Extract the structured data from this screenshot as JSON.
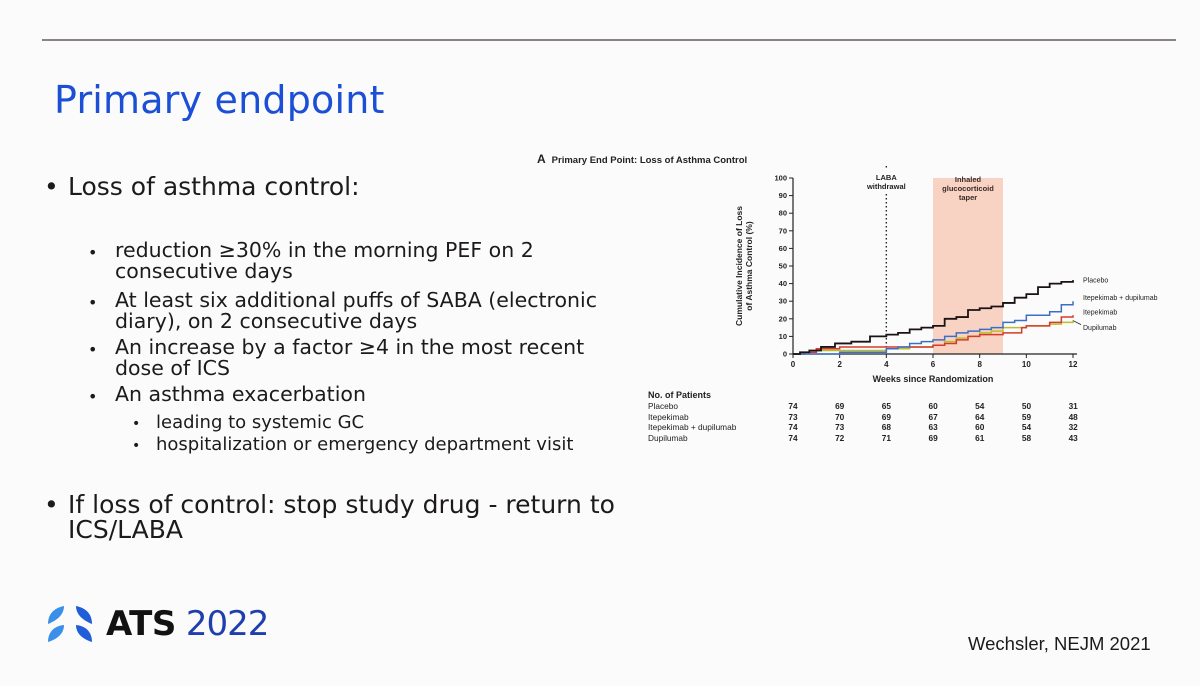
{
  "slide": {
    "title": "Primary endpoint",
    "bullets": {
      "main": "Loss of asthma control:",
      "sub": [
        {
          "line1": "reduction ≥30% in the morning PEF on 2",
          "line2": "consecutive days"
        },
        {
          "line1": "At least six additional puffs of SABA (electronic",
          "line2": "diary), on 2 consecutive days"
        },
        {
          "line1": "An increase by a factor ≥4 in the most recent",
          "line2": "dose of ICS"
        },
        {
          "line1": "An asthma exacerbation"
        }
      ],
      "subsub": [
        "leading to systemic GC",
        "hospitalization or emergency department visit"
      ],
      "second_main": {
        "line1": "If loss of control: stop study drug - return to",
        "line2": "ICS/LABA"
      },
      "bullet_glyph": "•"
    },
    "logo": {
      "icon": "ats-lungs-icon",
      "org": "ATS",
      "year": "2022"
    },
    "citation": "Wechsler, NEJM 2021",
    "colors": {
      "title": "#1a4fd6",
      "logo_year": "#1f3fae",
      "rule": "#8a8486"
    }
  },
  "chart_data": {
    "type": "line",
    "panel_letter": "A",
    "title": "Primary End Point: Loss of Asthma Control",
    "xlabel": "Weeks since Randomization",
    "ylabel_line1": "Cumulative Incidence of Loss",
    "ylabel_line2": "of Asthma Control (%)",
    "xlim": [
      0,
      12
    ],
    "ylim": [
      0,
      100
    ],
    "xticks": [
      "0",
      "2",
      "4",
      "6",
      "8",
      "10",
      "12"
    ],
    "yticks": [
      "0",
      "10",
      "20",
      "30",
      "40",
      "50",
      "60",
      "70",
      "80",
      "90",
      "100"
    ],
    "grid": false,
    "step": true,
    "annotations": [
      {
        "label_line1": "LABA",
        "label_line2": "withdrawal",
        "type": "vertical-dotted-line",
        "x": 4
      },
      {
        "label_line1": "Inhaled",
        "label_line2": "glucocorticoid",
        "label_line3": "taper",
        "type": "shaded-region",
        "x_range": [
          6,
          9
        ],
        "color": "#f8d3c4"
      }
    ],
    "series": [
      {
        "name": "Placebo",
        "color": "#1a1214",
        "x": [
          0,
          0.3,
          0.7,
          1.2,
          1.8,
          2.5,
          3.3,
          4,
          4.5,
          5,
          5.5,
          6,
          6.5,
          7,
          7.5,
          8,
          8.5,
          9,
          9.5,
          10,
          10.5,
          11,
          11.5,
          12
        ],
        "y": [
          0,
          1,
          2,
          4,
          6,
          7,
          10,
          11,
          12,
          14,
          15,
          16,
          20,
          21,
          25,
          26,
          27,
          29,
          32,
          34,
          38,
          40,
          41,
          42
        ]
      },
      {
        "name": "Itepekimab + dupilumab",
        "color": "#3c6fc4",
        "x": [
          0,
          1,
          2,
          3,
          4,
          4.5,
          5,
          5.5,
          6,
          6.5,
          7,
          7.5,
          8,
          8.5,
          9,
          9.5,
          10,
          10.5,
          11,
          11.5,
          12
        ],
        "y": [
          0,
          0,
          1,
          1,
          3,
          4,
          6,
          7,
          8,
          10,
          12,
          13,
          14,
          15,
          18,
          19,
          22,
          22,
          24,
          28,
          30
        ]
      },
      {
        "name": "Itepekimab",
        "color": "#d63a2a",
        "x": [
          0,
          0.5,
          1,
          2,
          3,
          4,
          5,
          6,
          6.5,
          7,
          7.5,
          8,
          8.5,
          9,
          9.8,
          10,
          11,
          11.5,
          12
        ],
        "y": [
          0,
          1,
          3,
          4,
          4,
          4,
          4,
          5,
          6,
          8,
          10,
          11,
          11,
          12,
          15,
          16,
          18,
          21,
          22
        ]
      },
      {
        "name": "Dupilumab",
        "color": "#b8bf2c",
        "x": [
          0,
          0.5,
          1,
          2,
          3,
          4,
          5,
          5.5,
          6,
          6.5,
          7,
          7.5,
          8,
          8.5,
          9,
          10,
          11,
          11.5,
          12
        ],
        "y": [
          0,
          1,
          2,
          2,
          2,
          3,
          4,
          4,
          5,
          7,
          9,
          10,
          12,
          13,
          15,
          16,
          17,
          18,
          19
        ]
      }
    ],
    "number_at_risk": {
      "header": "No. of Patients",
      "weeks": [
        0,
        2,
        4,
        6,
        8,
        10,
        12
      ],
      "rows": [
        {
          "name": "Placebo",
          "values": [
            "74",
            "69",
            "65",
            "60",
            "54",
            "50",
            "31"
          ]
        },
        {
          "name": "Itepekimab",
          "values": [
            "73",
            "70",
            "69",
            "67",
            "64",
            "59",
            "48"
          ]
        },
        {
          "name": "Itepekimab + dupilumab",
          "values": [
            "74",
            "73",
            "68",
            "63",
            "60",
            "54",
            "32"
          ]
        },
        {
          "name": "Dupilumab",
          "values": [
            "74",
            "72",
            "71",
            "69",
            "61",
            "58",
            "43"
          ]
        }
      ]
    }
  }
}
